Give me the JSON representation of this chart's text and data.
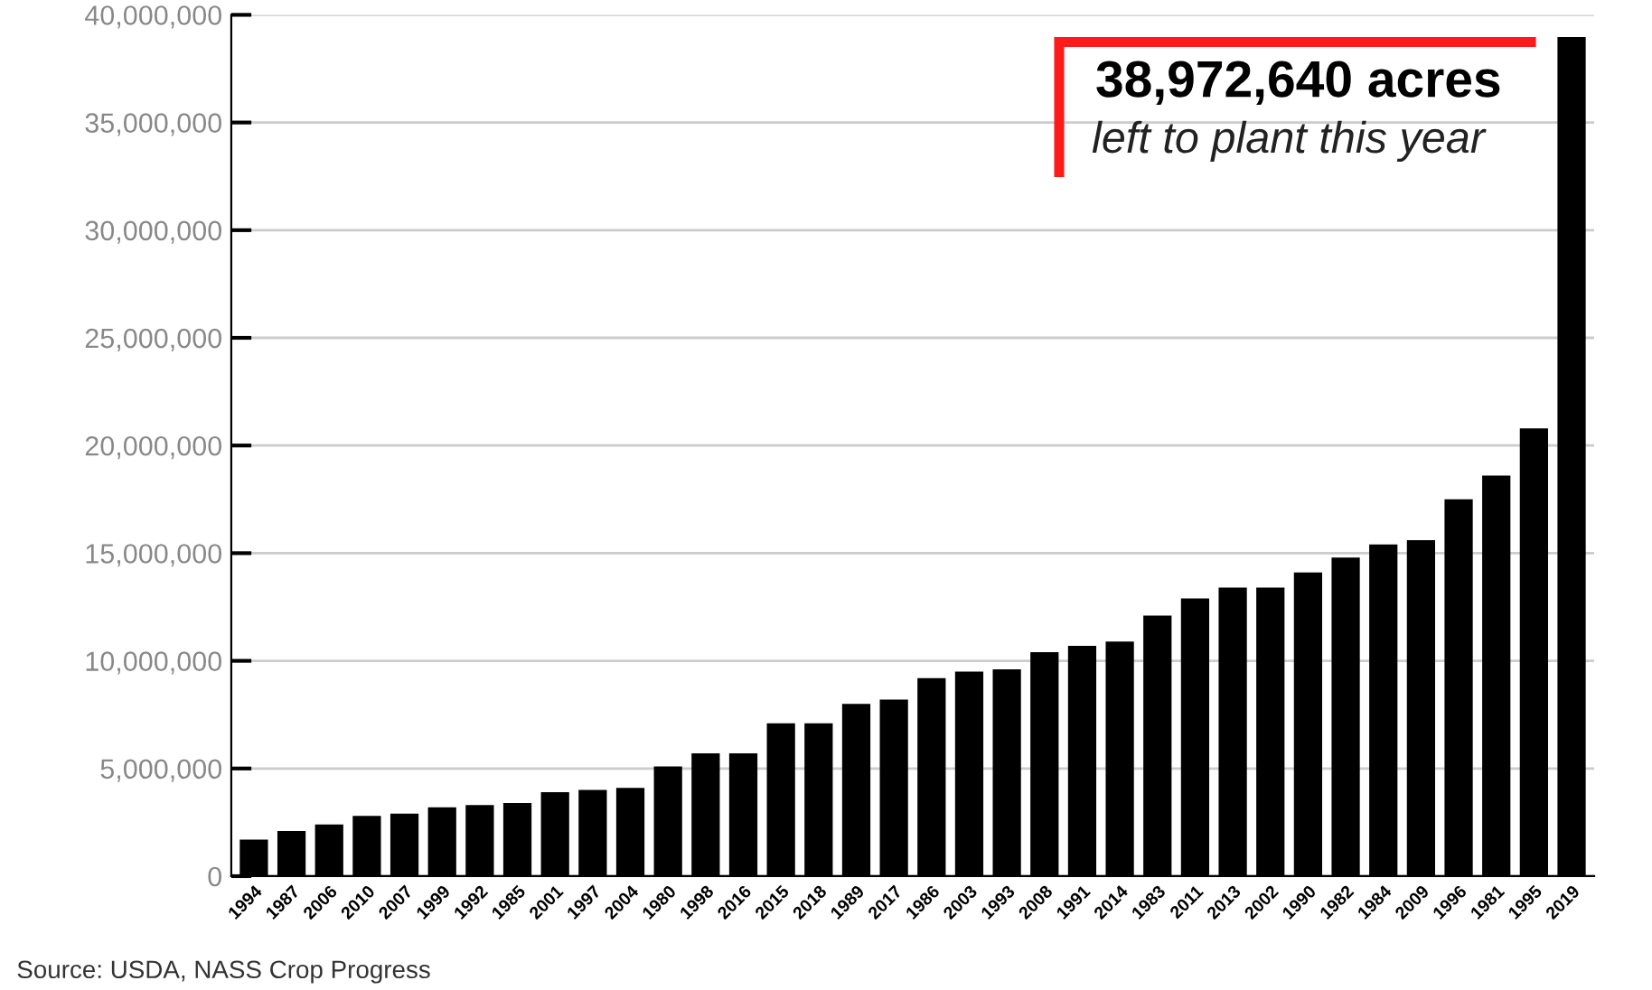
{
  "chart_data": {
    "type": "bar",
    "categories": [
      "1994",
      "1987",
      "2006",
      "2010",
      "2007",
      "1999",
      "1992",
      "1985",
      "2001",
      "1997",
      "2004",
      "1980",
      "1998",
      "2016",
      "2015",
      "2018",
      "1989",
      "2017",
      "1986",
      "2003",
      "1993",
      "2008",
      "1991",
      "2014",
      "1983",
      "2011",
      "2013",
      "2002",
      "1990",
      "1982",
      "1984",
      "2009",
      "1996",
      "1981",
      "1995",
      "2019"
    ],
    "values": [
      1700000,
      2100000,
      2400000,
      2800000,
      2900000,
      3200000,
      3300000,
      3400000,
      3900000,
      4000000,
      4100000,
      5100000,
      5700000,
      5700000,
      7100000,
      7100000,
      8000000,
      8200000,
      9200000,
      9500000,
      9600000,
      10400000,
      10700000,
      10900000,
      12100000,
      12900000,
      13400000,
      13400000,
      14100000,
      14800000,
      15400000,
      15600000,
      17500000,
      18600000,
      20800000,
      38972640
    ],
    "color": "#000000",
    "ylim": [
      0,
      40000000
    ],
    "yticks": [
      0,
      {
        "value": 5000000,
        "label": "5,000,000"
      },
      {
        "value": 10000000,
        "label": "10,000,000"
      },
      {
        "value": 15000000,
        "label": "15,000,000"
      },
      {
        "value": 20000000,
        "label": "20,000,000"
      },
      {
        "value": 25000000,
        "label": "25,000,000"
      },
      {
        "value": 30000000,
        "label": "30,000,000"
      },
      {
        "value": 35000000,
        "label": "35,000,000"
      },
      {
        "value": 40000000,
        "label": "40,000,000"
      }
    ],
    "grid": "y",
    "annotations": [
      "38,972,640 acres",
      "left to plant this year",
      "Source: USDA, NASS Crop Progress"
    ]
  }
}
